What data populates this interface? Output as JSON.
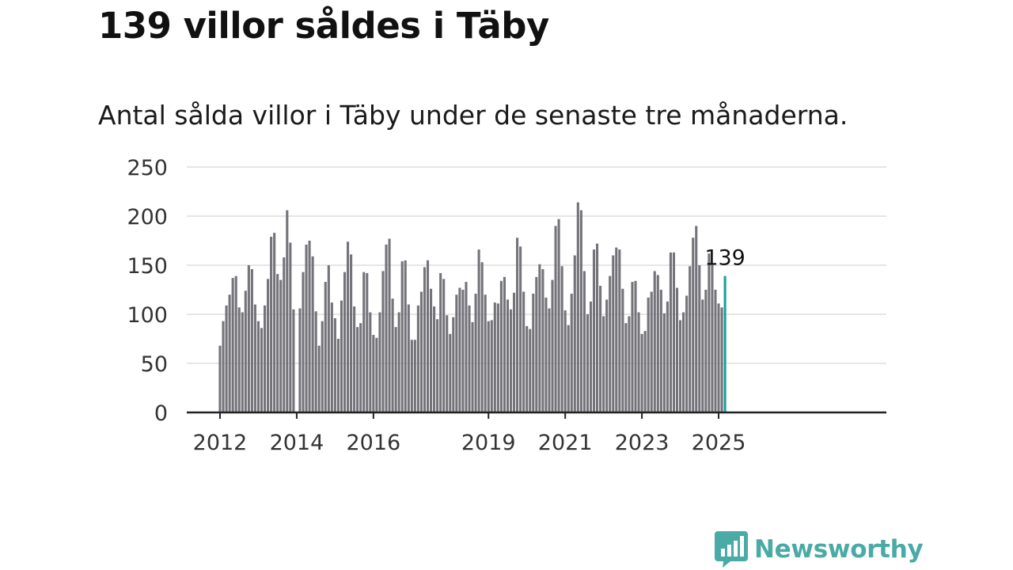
{
  "header": {
    "title": "139 villor såldes i Täby",
    "subtitle": "Antal sålda villor i Täby under de senaste tre månaderna."
  },
  "branding": {
    "logo_text": "Newsworthy",
    "logo_icon": "bar-chart-speech-bubble-icon"
  },
  "colors": {
    "bar": "#74737a",
    "highlight": "#1aa0a0",
    "grid": "#dddddd",
    "axis": "#222222",
    "brand": "#4aaaa5"
  },
  "chart_data": {
    "type": "bar",
    "title": "",
    "xlabel": "",
    "ylabel": "",
    "ylim": [
      0,
      250
    ],
    "yticks": [
      0,
      50,
      100,
      150,
      200,
      250
    ],
    "x_start": "2012-01",
    "xticks": [
      {
        "label": "2012",
        "date": "2012-01"
      },
      {
        "label": "2014",
        "date": "2014-01"
      },
      {
        "label": "2016",
        "date": "2016-01"
      },
      {
        "label": "2019",
        "date": "2019-01"
      },
      {
        "label": "2021",
        "date": "2021-01"
      },
      {
        "label": "2023",
        "date": "2023-01"
      },
      {
        "label": "2025",
        "date": "2025-01"
      }
    ],
    "grid": true,
    "highlight": {
      "date": "2025-03",
      "value": 139,
      "label": "139"
    },
    "values": [
      68,
      93,
      109,
      120,
      137,
      139,
      107,
      102,
      124,
      150,
      146,
      110,
      93,
      86,
      109,
      136,
      179,
      183,
      141,
      135,
      158,
      206,
      173,
      105,
      0,
      106,
      143,
      171,
      175,
      159,
      103,
      68,
      93,
      133,
      150,
      112,
      96,
      75,
      114,
      143,
      174,
      161,
      108,
      87,
      91,
      143,
      142,
      102,
      79,
      76,
      102,
      144,
      171,
      177,
      116,
      87,
      102,
      154,
      155,
      110,
      74,
      74,
      109,
      123,
      148,
      155,
      126,
      108,
      95,
      142,
      136,
      99,
      80,
      97,
      120,
      127,
      125,
      133,
      109,
      92,
      121,
      166,
      153,
      120,
      93,
      94,
      112,
      111,
      134,
      138,
      115,
      105,
      122,
      178,
      169,
      123,
      88,
      85,
      121,
      138,
      151,
      146,
      117,
      106,
      135,
      190,
      197,
      149,
      104,
      89,
      121,
      160,
      214,
      206,
      144,
      100,
      113,
      166,
      172,
      129,
      98,
      115,
      139,
      160,
      168,
      166,
      126,
      91,
      98,
      133,
      134,
      102,
      80,
      83,
      117,
      123,
      144,
      140,
      125,
      101,
      113,
      163,
      163,
      127,
      94,
      102,
      119,
      149,
      178,
      190,
      150,
      115,
      125,
      162,
      151,
      125,
      111,
      107,
      139
    ]
  }
}
